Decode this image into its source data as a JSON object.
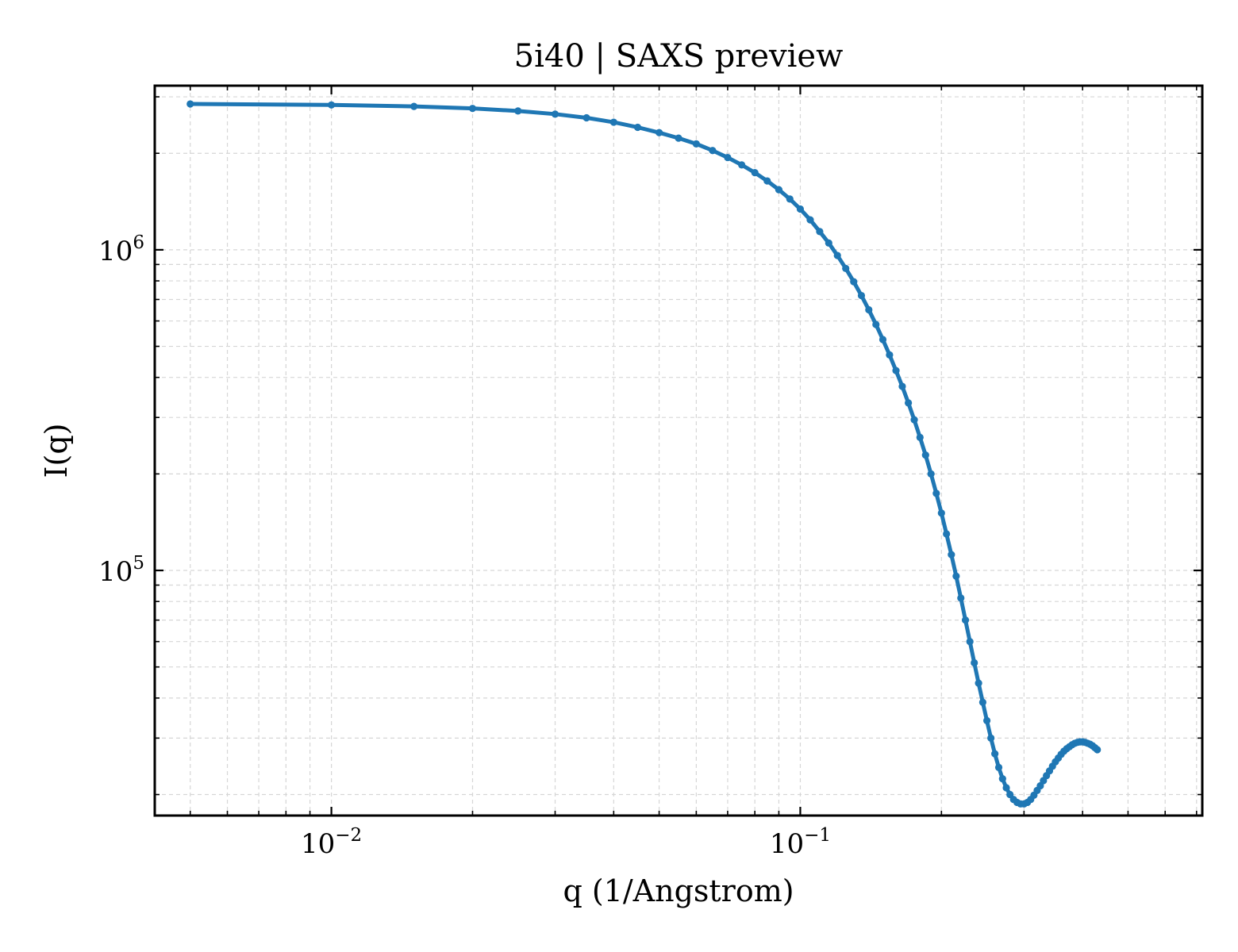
{
  "chart_data": {
    "type": "line",
    "title": "5i40 | SAXS preview",
    "xlabel": "q (1/Angstrom)",
    "ylabel": "I(q)",
    "xscale": "log",
    "yscale": "log",
    "xlim": [
      0.0042,
      0.72
    ],
    "ylim": [
      17200,
      3250000
    ],
    "grid": true,
    "legend": "none",
    "x_major_ticks": [
      {
        "value": 0.01,
        "base": "10",
        "exp": "−2"
      },
      {
        "value": 0.1,
        "base": "10",
        "exp": "−1"
      }
    ],
    "y_major_ticks": [
      {
        "value": 100000,
        "base": "10",
        "exp": "5"
      },
      {
        "value": 1000000,
        "base": "10",
        "exp": "6"
      }
    ],
    "series": [
      {
        "color": "#1f77b4",
        "points": [
          [
            0.005,
            2850000
          ],
          [
            0.01,
            2830000
          ],
          [
            0.015,
            2800000
          ],
          [
            0.02,
            2760000
          ],
          [
            0.025,
            2710000
          ],
          [
            0.03,
            2650000
          ],
          [
            0.035,
            2580000
          ],
          [
            0.04,
            2500000
          ],
          [
            0.045,
            2410000
          ],
          [
            0.05,
            2320000
          ],
          [
            0.055,
            2230000
          ],
          [
            0.06,
            2140000
          ],
          [
            0.065,
            2040000
          ],
          [
            0.07,
            1940000
          ],
          [
            0.075,
            1840000
          ],
          [
            0.08,
            1740000
          ],
          [
            0.085,
            1640000
          ],
          [
            0.09,
            1540000
          ],
          [
            0.095,
            1440000
          ],
          [
            0.1,
            1340000
          ],
          [
            0.105,
            1240000
          ],
          [
            0.11,
            1140000
          ],
          [
            0.115,
            1050000
          ],
          [
            0.12,
            960000
          ],
          [
            0.125,
            875000
          ],
          [
            0.13,
            795000
          ],
          [
            0.135,
            720000
          ],
          [
            0.14,
            650000
          ],
          [
            0.145,
            585000
          ],
          [
            0.15,
            525000
          ],
          [
            0.155,
            470000
          ],
          [
            0.16,
            420000
          ],
          [
            0.165,
            375000
          ],
          [
            0.17,
            333000
          ],
          [
            0.175,
            295000
          ],
          [
            0.18,
            260000
          ],
          [
            0.185,
            229000
          ],
          [
            0.19,
            200000
          ],
          [
            0.195,
            174000
          ],
          [
            0.2,
            151000
          ],
          [
            0.205,
            130000
          ],
          [
            0.21,
            112000
          ],
          [
            0.215,
            96000
          ],
          [
            0.22,
            82000
          ],
          [
            0.225,
            70000
          ],
          [
            0.23,
            60000
          ],
          [
            0.235,
            51500
          ],
          [
            0.24,
            44500
          ],
          [
            0.245,
            38800
          ],
          [
            0.25,
            34000
          ],
          [
            0.255,
            30000
          ],
          [
            0.26,
            26800
          ],
          [
            0.265,
            24300
          ],
          [
            0.27,
            22400
          ],
          [
            0.275,
            21000
          ],
          [
            0.28,
            20000
          ],
          [
            0.285,
            19300
          ],
          [
            0.29,
            18900
          ],
          [
            0.295,
            18700
          ],
          [
            0.3,
            18700
          ],
          [
            0.305,
            18900
          ],
          [
            0.31,
            19300
          ],
          [
            0.315,
            19900
          ],
          [
            0.32,
            20600
          ],
          [
            0.325,
            21300
          ],
          [
            0.33,
            22100
          ],
          [
            0.335,
            22900
          ],
          [
            0.34,
            23700
          ],
          [
            0.345,
            24500
          ],
          [
            0.35,
            25300
          ],
          [
            0.355,
            26000
          ],
          [
            0.36,
            26700
          ],
          [
            0.365,
            27300
          ],
          [
            0.37,
            27800
          ],
          [
            0.375,
            28200
          ],
          [
            0.38,
            28600
          ],
          [
            0.385,
            28900
          ],
          [
            0.39,
            29100
          ],
          [
            0.395,
            29200
          ],
          [
            0.4,
            29200
          ],
          [
            0.405,
            29100
          ],
          [
            0.41,
            28900
          ],
          [
            0.415,
            28700
          ],
          [
            0.42,
            28400
          ],
          [
            0.425,
            28000
          ],
          [
            0.43,
            27600
          ]
        ]
      }
    ]
  }
}
